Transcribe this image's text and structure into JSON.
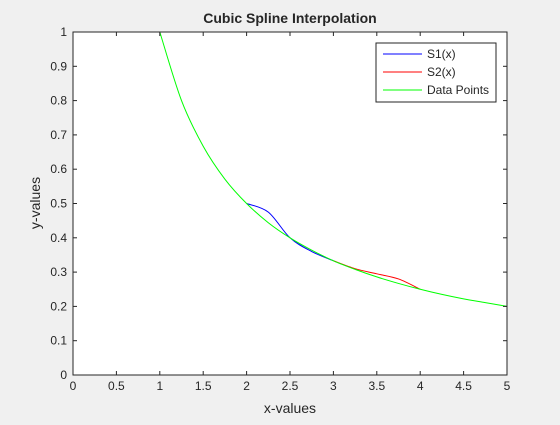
{
  "colors": {
    "background": "#f0f0f0",
    "plot_background": "#ffffff",
    "axes": "#262626",
    "s1": "#0000ff",
    "s2": "#ff0000",
    "data": "#00ff00"
  },
  "chart_data": {
    "type": "line",
    "title": "Cubic Spline Interpolation",
    "xlabel": "x-values",
    "ylabel": "y-values",
    "xlim": [
      0,
      5
    ],
    "ylim": [
      0,
      1
    ],
    "grid": false,
    "legend_position": "top-right",
    "xticks": [
      "0",
      "0.5",
      "1",
      "1.5",
      "2",
      "2.5",
      "3",
      "3.5",
      "4",
      "4.5",
      "5"
    ],
    "yticks": [
      "0",
      "0.1",
      "0.2",
      "0.3",
      "0.4",
      "0.5",
      "0.6",
      "0.7",
      "0.8",
      "0.9",
      "1"
    ],
    "series": [
      {
        "name": "S1(x)",
        "color": "#0000ff",
        "x": [
          2.0,
          2.25,
          2.5,
          2.75,
          3.0
        ],
        "y": [
          0.5,
          0.475,
          0.4,
          0.36,
          0.333
        ]
      },
      {
        "name": "S2(x)",
        "color": "#ff0000",
        "x": [
          3.0,
          3.25,
          3.5,
          3.75,
          4.0
        ],
        "y": [
          0.333,
          0.31,
          0.295,
          0.28,
          0.25
        ]
      },
      {
        "name": "Data Points",
        "color": "#00ff00",
        "x": [
          1.0,
          1.25,
          1.5,
          1.75,
          2.0,
          2.25,
          2.5,
          2.75,
          3.0,
          3.25,
          3.5,
          3.75,
          4.0,
          4.25,
          4.5,
          4.75,
          5.0
        ],
        "y": [
          1.0,
          0.8,
          0.667,
          0.571,
          0.5,
          0.444,
          0.4,
          0.364,
          0.333,
          0.308,
          0.286,
          0.267,
          0.25,
          0.235,
          0.222,
          0.211,
          0.2
        ]
      }
    ]
  }
}
